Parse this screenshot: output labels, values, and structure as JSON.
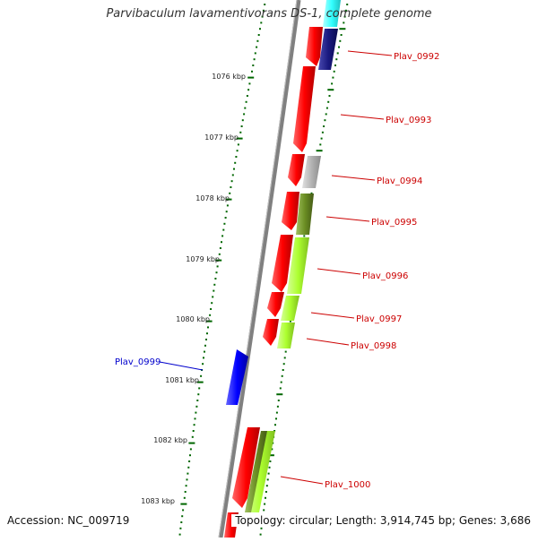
{
  "title": "Parvibaculum lavamentivorans DS-1, complete genome",
  "footer": {
    "accession": "Accession: NC_009719",
    "summary": "Topology: circular; Length: 3,914,745 bp; Genes: 3,686"
  },
  "colors": {
    "forward_cds": "#ff0000",
    "reverse_cds": "#0000ff",
    "tick": "#006600",
    "backbone": "#808080",
    "forward_label": "#cc0000",
    "reverse_label": "#0000cc",
    "cog_cyan": "#33ffff",
    "cog_navy": "#1a1a80",
    "cog_gray": "#b3b3b3",
    "cog_olive": "#6b8e23",
    "cog_lime": "#adff2f"
  },
  "scale_labels": [
    {
      "kbp": 1076,
      "text": "1076 kbp"
    },
    {
      "kbp": 1077,
      "text": "1077 kbp"
    },
    {
      "kbp": 1078,
      "text": "1078 kbp"
    },
    {
      "kbp": 1079,
      "text": "1079 kbp"
    },
    {
      "kbp": 1080,
      "text": "1080 kbp"
    },
    {
      "kbp": 1081,
      "text": "1081 kbp"
    },
    {
      "kbp": 1082,
      "text": "1082 kbp"
    },
    {
      "kbp": 1083,
      "text": "1083 kbp"
    }
  ],
  "gene_labels": [
    {
      "text": "Plav_0992",
      "strand": "forward"
    },
    {
      "text": "Plav_0993",
      "strand": "forward"
    },
    {
      "text": "Plav_0994",
      "strand": "forward"
    },
    {
      "text": "Plav_0995",
      "strand": "forward"
    },
    {
      "text": "Plav_0996",
      "strand": "forward"
    },
    {
      "text": "Plav_0997",
      "strand": "forward"
    },
    {
      "text": "Plav_0998",
      "strand": "forward"
    },
    {
      "text": "Plav_0999",
      "strand": "reverse"
    },
    {
      "text": "Plav_1000",
      "strand": "forward"
    }
  ]
}
